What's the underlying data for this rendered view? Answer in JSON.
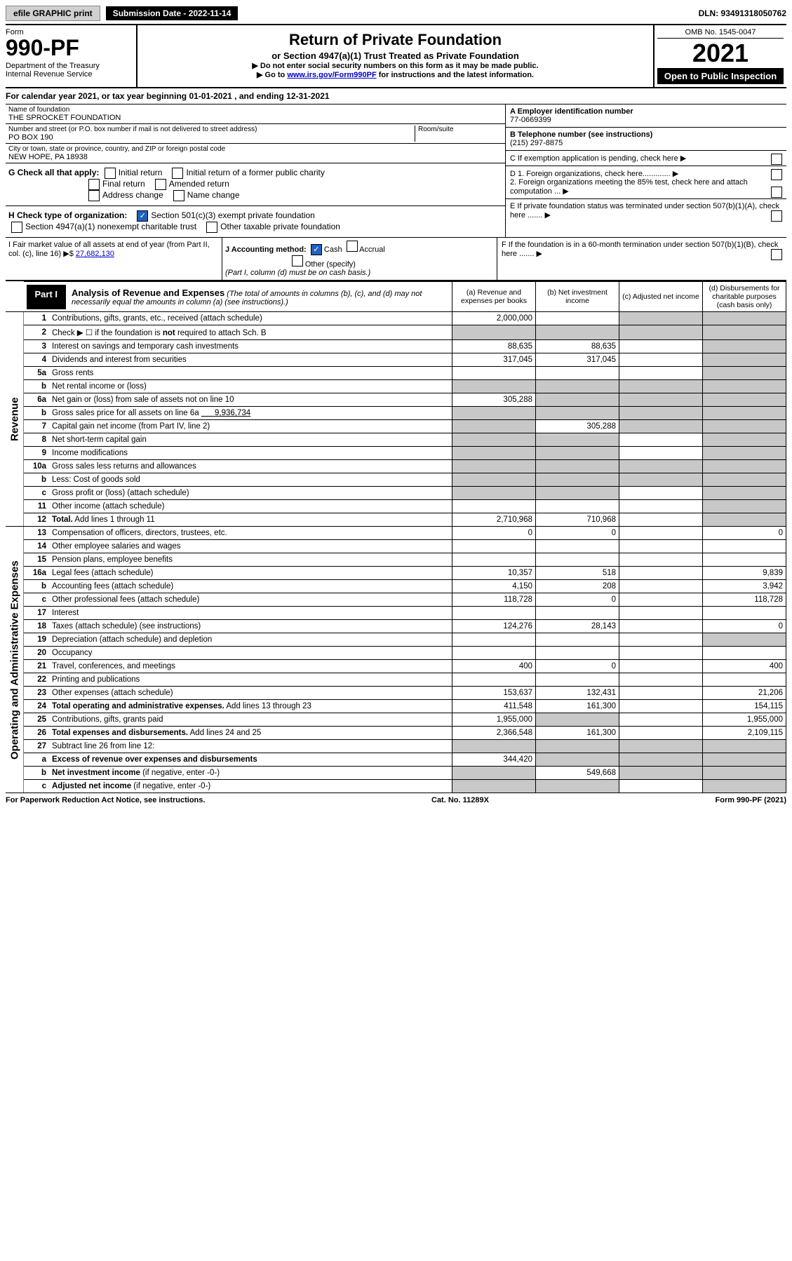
{
  "topbar": {
    "efile": "efile GRAPHIC print",
    "submission": "Submission Date - 2022-11-14",
    "dln": "DLN: 93491318050762"
  },
  "header": {
    "form_word": "Form",
    "form_num": "990-PF",
    "dept": "Department of the Treasury\nInternal Revenue Service",
    "title": "Return of Private Foundation",
    "subtitle": "or Section 4947(a)(1) Trust Treated as Private Foundation",
    "note1": "▶ Do not enter social security numbers on this form as it may be made public.",
    "note2_pre": "▶ Go to ",
    "note2_link": "www.irs.gov/Form990PF",
    "note2_post": " for instructions and the latest information.",
    "omb": "OMB No. 1545-0047",
    "year": "2021",
    "open": "Open to Public Inspection"
  },
  "calyear": "For calendar year 2021, or tax year beginning 01-01-2021          , and ending 12-31-2021",
  "foundation": {
    "name_label": "Name of foundation",
    "name": "THE SPROCKET FOUNDATION",
    "addr_label": "Number and street (or P.O. box number if mail is not delivered to street address)",
    "addr": "PO BOX 190",
    "room_label": "Room/suite",
    "city_label": "City or town, state or province, country, and ZIP or foreign postal code",
    "city": "NEW HOPE, PA  18938"
  },
  "rightinfo": {
    "a_label": "A Employer identification number",
    "a_val": "77-0669399",
    "b_label": "B Telephone number (see instructions)",
    "b_val": "(215) 297-8875",
    "c_label": "C If exemption application is pending, check here",
    "d1": "D 1. Foreign organizations, check here.............",
    "d2": "2. Foreign organizations meeting the 85% test, check here and attach computation ...",
    "e": "E  If private foundation status was terminated under section 507(b)(1)(A), check here .......",
    "f": "F  If the foundation is in a 60-month termination under section 507(b)(1)(B), check here ......."
  },
  "g": {
    "label": "G Check all that apply:",
    "opts": [
      "Initial return",
      "Initial return of a former public charity",
      "Final return",
      "Amended return",
      "Address change",
      "Name change"
    ]
  },
  "h": {
    "label": "H Check type of organization:",
    "opt1": "Section 501(c)(3) exempt private foundation",
    "opt2": "Section 4947(a)(1) nonexempt charitable trust",
    "opt3": "Other taxable private foundation"
  },
  "i": {
    "label": "I Fair market value of all assets at end of year (from Part II, col. (c), line 16) ▶$",
    "val": "27,682,130"
  },
  "j": {
    "label": "J Accounting method:",
    "cash": "Cash",
    "accrual": "Accrual",
    "other": "Other (specify)",
    "note": "(Part I, column (d) must be on cash basis.)"
  },
  "part1": {
    "label": "Part I",
    "title": "Analysis of Revenue and Expenses",
    "desc": "(The total of amounts in columns (b), (c), and (d) may not necessarily equal the amounts in column (a) (see instructions).)",
    "cols": {
      "a": "(a)  Revenue and expenses per books",
      "b": "(b)  Net investment income",
      "c": "(c)  Adjusted net income",
      "d": "(d)  Disbursements for charitable purposes (cash basis only)"
    }
  },
  "sides": {
    "rev": "Revenue",
    "exp": "Operating and Administrative Expenses"
  },
  "rows": [
    {
      "n": "1",
      "desc": "Contributions, gifts, grants, etc., received (attach schedule)",
      "a": "2,000,000",
      "b": "",
      "c": "shade",
      "d": "shade"
    },
    {
      "n": "2",
      "desc": "Check ▶ ☐ if the foundation is <b>not</b> required to attach Sch. B",
      "a": "shade",
      "b": "shade",
      "c": "shade",
      "d": "shade"
    },
    {
      "n": "3",
      "desc": "Interest on savings and temporary cash investments",
      "a": "88,635",
      "b": "88,635",
      "c": "",
      "d": "shade"
    },
    {
      "n": "4",
      "desc": "Dividends and interest from securities",
      "a": "317,045",
      "b": "317,045",
      "c": "",
      "d": "shade"
    },
    {
      "n": "5a",
      "desc": "Gross rents",
      "a": "",
      "b": "",
      "c": "",
      "d": "shade"
    },
    {
      "n": "b",
      "desc": "Net rental income or (loss)",
      "a": "shade",
      "b": "shade",
      "c": "shade",
      "d": "shade"
    },
    {
      "n": "6a",
      "desc": "Net gain or (loss) from sale of assets not on line 10",
      "a": "305,288",
      "b": "shade",
      "c": "shade",
      "d": "shade"
    },
    {
      "n": "b",
      "desc": "Gross sales price for all assets on line 6a <u>&nbsp;&nbsp;&nbsp;&nbsp;&nbsp;&nbsp;9,936,734</u>",
      "a": "shade",
      "b": "shade",
      "c": "shade",
      "d": "shade"
    },
    {
      "n": "7",
      "desc": "Capital gain net income (from Part IV, line 2)",
      "a": "shade",
      "b": "305,288",
      "c": "shade",
      "d": "shade"
    },
    {
      "n": "8",
      "desc": "Net short-term capital gain",
      "a": "shade",
      "b": "shade",
      "c": "",
      "d": "shade"
    },
    {
      "n": "9",
      "desc": "Income modifications",
      "a": "shade",
      "b": "shade",
      "c": "",
      "d": "shade"
    },
    {
      "n": "10a",
      "desc": "Gross sales less returns and allowances",
      "a": "shade",
      "b": "shade",
      "c": "shade",
      "d": "shade"
    },
    {
      "n": "b",
      "desc": "Less: Cost of goods sold",
      "a": "shade",
      "b": "shade",
      "c": "shade",
      "d": "shade"
    },
    {
      "n": "c",
      "desc": "Gross profit or (loss) (attach schedule)",
      "a": "shade",
      "b": "shade",
      "c": "",
      "d": "shade"
    },
    {
      "n": "11",
      "desc": "Other income (attach schedule)",
      "a": "",
      "b": "",
      "c": "",
      "d": "shade"
    },
    {
      "n": "12",
      "desc": "<b>Total.</b> Add lines 1 through 11",
      "a": "2,710,968",
      "b": "710,968",
      "c": "",
      "d": "shade"
    },
    {
      "n": "13",
      "desc": "Compensation of officers, directors, trustees, etc.",
      "a": "0",
      "b": "0",
      "c": "",
      "d": "0"
    },
    {
      "n": "14",
      "desc": "Other employee salaries and wages",
      "a": "",
      "b": "",
      "c": "",
      "d": ""
    },
    {
      "n": "15",
      "desc": "Pension plans, employee benefits",
      "a": "",
      "b": "",
      "c": "",
      "d": ""
    },
    {
      "n": "16a",
      "desc": "Legal fees (attach schedule)",
      "a": "10,357",
      "b": "518",
      "c": "",
      "d": "9,839"
    },
    {
      "n": "b",
      "desc": "Accounting fees (attach schedule)",
      "a": "4,150",
      "b": "208",
      "c": "",
      "d": "3,942"
    },
    {
      "n": "c",
      "desc": "Other professional fees (attach schedule)",
      "a": "118,728",
      "b": "0",
      "c": "",
      "d": "118,728"
    },
    {
      "n": "17",
      "desc": "Interest",
      "a": "",
      "b": "",
      "c": "",
      "d": ""
    },
    {
      "n": "18",
      "desc": "Taxes (attach schedule) (see instructions)",
      "a": "124,276",
      "b": "28,143",
      "c": "",
      "d": "0"
    },
    {
      "n": "19",
      "desc": "Depreciation (attach schedule) and depletion",
      "a": "",
      "b": "",
      "c": "",
      "d": "shade"
    },
    {
      "n": "20",
      "desc": "Occupancy",
      "a": "",
      "b": "",
      "c": "",
      "d": ""
    },
    {
      "n": "21",
      "desc": "Travel, conferences, and meetings",
      "a": "400",
      "b": "0",
      "c": "",
      "d": "400"
    },
    {
      "n": "22",
      "desc": "Printing and publications",
      "a": "",
      "b": "",
      "c": "",
      "d": ""
    },
    {
      "n": "23",
      "desc": "Other expenses (attach schedule)",
      "a": "153,637",
      "b": "132,431",
      "c": "",
      "d": "21,206"
    },
    {
      "n": "24",
      "desc": "<b>Total operating and administrative expenses.</b> Add lines 13 through 23",
      "a": "411,548",
      "b": "161,300",
      "c": "",
      "d": "154,115"
    },
    {
      "n": "25",
      "desc": "Contributions, gifts, grants paid",
      "a": "1,955,000",
      "b": "shade",
      "c": "",
      "d": "1,955,000"
    },
    {
      "n": "26",
      "desc": "<b>Total expenses and disbursements.</b> Add lines 24 and 25",
      "a": "2,366,548",
      "b": "161,300",
      "c": "",
      "d": "2,109,115"
    },
    {
      "n": "27",
      "desc": "Subtract line 26 from line 12:",
      "a": "shade",
      "b": "shade",
      "c": "shade",
      "d": "shade"
    },
    {
      "n": "a",
      "desc": "<b>Excess of revenue over expenses and disbursements</b>",
      "a": "344,420",
      "b": "shade",
      "c": "shade",
      "d": "shade"
    },
    {
      "n": "b",
      "desc": "<b>Net investment income</b> (if negative, enter -0-)",
      "a": "shade",
      "b": "549,668",
      "c": "shade",
      "d": "shade"
    },
    {
      "n": "c",
      "desc": "<b>Adjusted net income</b> (if negative, enter -0-)",
      "a": "shade",
      "b": "shade",
      "c": "",
      "d": "shade"
    }
  ],
  "footer": {
    "left": "For Paperwork Reduction Act Notice, see instructions.",
    "mid": "Cat. No. 11289X",
    "right": "Form 990-PF (2021)"
  }
}
